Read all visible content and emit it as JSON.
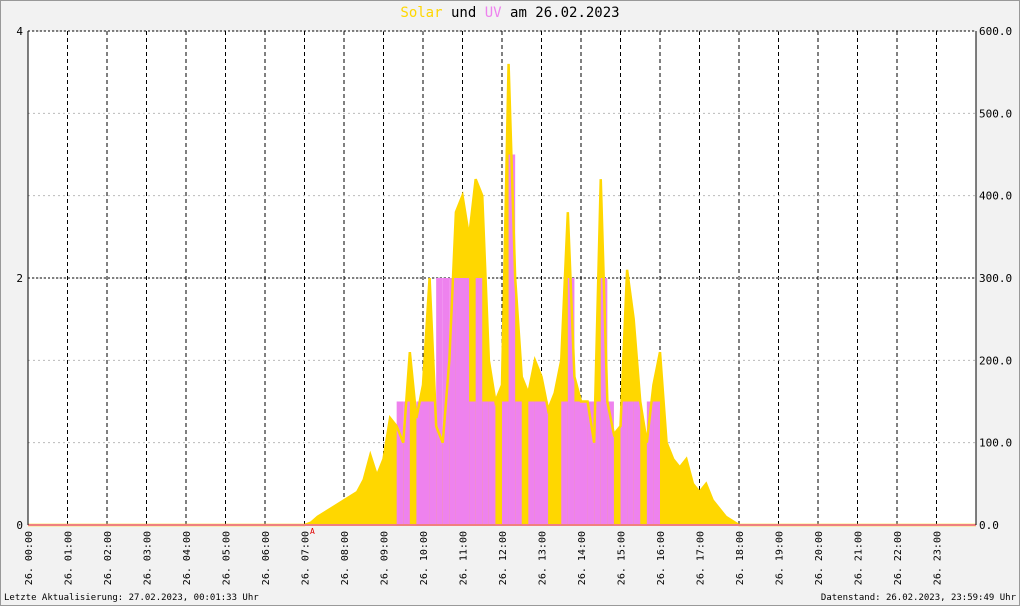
{
  "chart_data": {
    "type": "area",
    "title_words": [
      "und",
      "am 26.02.2023"
    ],
    "xlim": [
      0,
      1440
    ],
    "xticks": [
      {
        "value": 0,
        "label": "26. 00:00"
      },
      {
        "value": 60,
        "label": "26. 01:00"
      },
      {
        "value": 120,
        "label": "26. 02:00"
      },
      {
        "value": 180,
        "label": "26. 03:00"
      },
      {
        "value": 240,
        "label": "26. 04:00"
      },
      {
        "value": 300,
        "label": "26. 05:00"
      },
      {
        "value": 360,
        "label": "26. 06:00"
      },
      {
        "value": 420,
        "label": "26. 07:00"
      },
      {
        "value": 480,
        "label": "26. 08:00"
      },
      {
        "value": 540,
        "label": "26. 09:00"
      },
      {
        "value": 600,
        "label": "26. 10:00"
      },
      {
        "value": 660,
        "label": "26. 11:00"
      },
      {
        "value": 720,
        "label": "26. 12:00"
      },
      {
        "value": 780,
        "label": "26. 13:00"
      },
      {
        "value": 840,
        "label": "26. 14:00"
      },
      {
        "value": 900,
        "label": "26. 15:00"
      },
      {
        "value": 960,
        "label": "26. 16:00"
      },
      {
        "value": 1020,
        "label": "26. 17:00"
      },
      {
        "value": 1080,
        "label": "26. 18:00"
      },
      {
        "value": 1140,
        "label": "26. 19:00"
      },
      {
        "value": 1200,
        "label": "26. 20:00"
      },
      {
        "value": 1260,
        "label": "26. 21:00"
      },
      {
        "value": 1320,
        "label": "26. 22:00"
      },
      {
        "value": 1380,
        "label": "26. 23:00"
      }
    ],
    "ylim": [
      0,
      4
    ],
    "yticks": [
      0,
      2,
      4
    ],
    "y2lim": [
      0,
      600
    ],
    "y2ticks": [
      {
        "value": 0,
        "label": "0.0"
      },
      {
        "value": 100,
        "label": "100.0"
      },
      {
        "value": 200,
        "label": "200.0"
      },
      {
        "value": 300,
        "label": "300.0"
      },
      {
        "value": 400,
        "label": "400.0"
      },
      {
        "value": 500,
        "label": "500.0"
      },
      {
        "value": 600,
        "label": "600.0"
      }
    ],
    "grid": true,
    "x": [
      0,
      420,
      430,
      440,
      450,
      460,
      470,
      480,
      490,
      500,
      510,
      520,
      530,
      540,
      550,
      560,
      570,
      580,
      590,
      600,
      610,
      620,
      630,
      640,
      650,
      660,
      670,
      680,
      690,
      700,
      710,
      720,
      730,
      740,
      750,
      760,
      770,
      780,
      790,
      800,
      810,
      820,
      830,
      840,
      850,
      860,
      870,
      880,
      890,
      900,
      910,
      920,
      930,
      940,
      950,
      960,
      970,
      980,
      990,
      1000,
      1010,
      1020,
      1030,
      1040,
      1050,
      1060,
      1070,
      1080,
      1440
    ],
    "series": [
      {
        "name": "Solar",
        "color": "#ffd700",
        "axis": "y2",
        "values": [
          0,
          0,
          3,
          10,
          15,
          20,
          25,
          30,
          35,
          40,
          55,
          85,
          60,
          80,
          130,
          120,
          100,
          210,
          130,
          170,
          300,
          120,
          100,
          200,
          380,
          400,
          350,
          420,
          400,
          200,
          150,
          170,
          560,
          300,
          180,
          160,
          200,
          180,
          140,
          160,
          200,
          380,
          180,
          150,
          150,
          100,
          420,
          150,
          110,
          120,
          310,
          250,
          150,
          100,
          170,
          210,
          100,
          80,
          70,
          80,
          50,
          40,
          50,
          30,
          20,
          10,
          5,
          0,
          0
        ]
      },
      {
        "name": "UV",
        "color": "#ee82ee",
        "axis": "y",
        "values": [
          0,
          0,
          0,
          0,
          0,
          0,
          0,
          0,
          0,
          0,
          0,
          0,
          0,
          0,
          0,
          1,
          1,
          0,
          1,
          1,
          1,
          2,
          2,
          2,
          2,
          2,
          1,
          2,
          1,
          1,
          0,
          1,
          3,
          1,
          0,
          1,
          1,
          1,
          0,
          0,
          1,
          2,
          1,
          1,
          1,
          1,
          2,
          1,
          0,
          1,
          1,
          1,
          0,
          1,
          1,
          0,
          0,
          0,
          0,
          0,
          0,
          0,
          0,
          0,
          0,
          0,
          0,
          0,
          0
        ]
      }
    ],
    "annotation": {
      "text": "A",
      "x": 432
    },
    "footer_left": "Letzte Aktualisierung: 27.02.2023, 00:01:33 Uhr",
    "footer_right": "Datenstand: 26.02.2023, 23:59:49 Uhr"
  }
}
